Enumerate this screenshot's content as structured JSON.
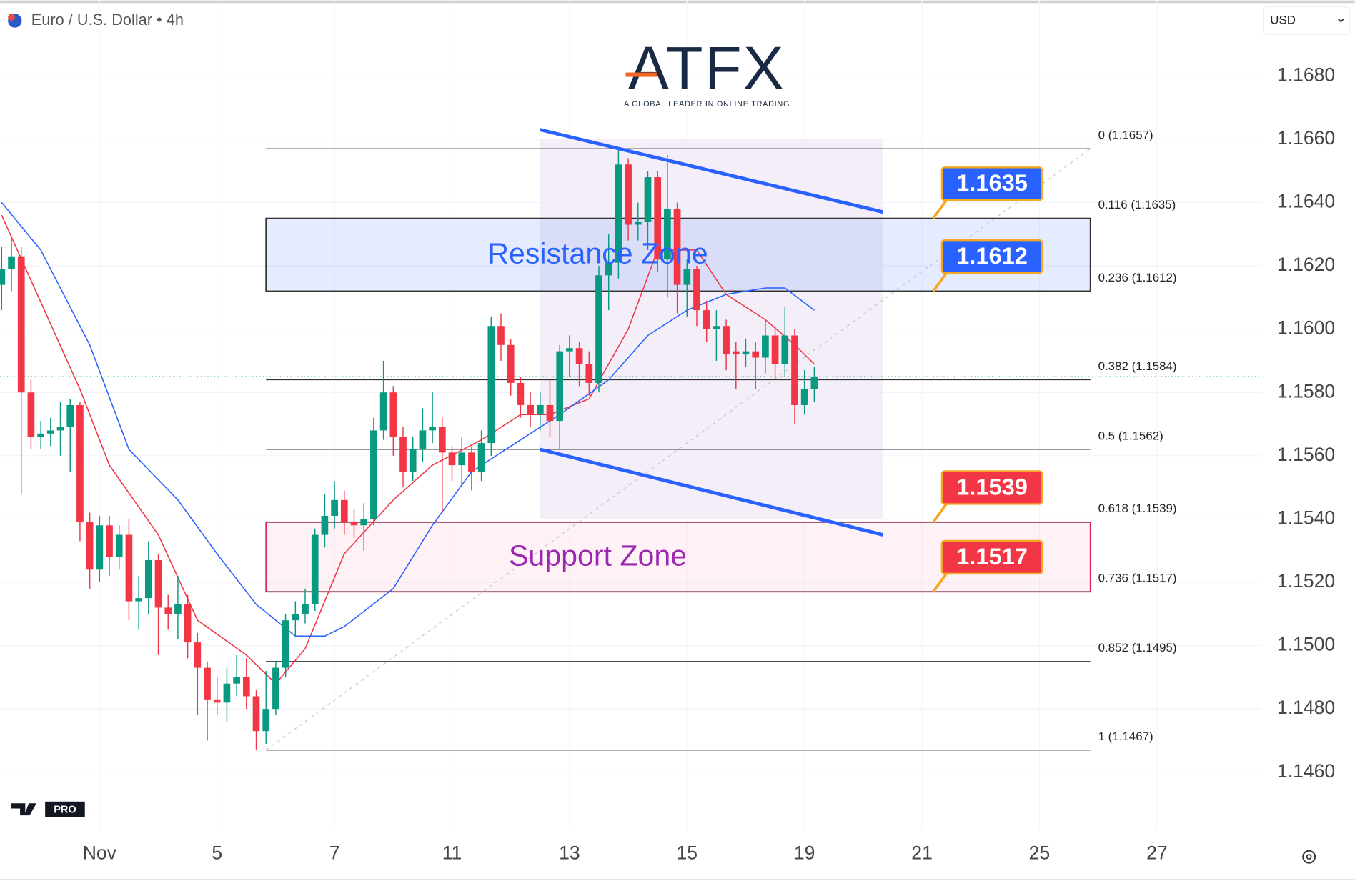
{
  "chart_data": {
    "type": "candlestick",
    "title": "Euro / U.S. Dollar • 4h",
    "currency": "USD",
    "logo": {
      "text": "ATFX",
      "tagline": "A GLOBAL LEADER IN ONLINE TRADING"
    },
    "badge": "PRO",
    "up_color": "#089981",
    "down_color": "#f23645",
    "open": [
      1.1614,
      1.1619,
      1.1623,
      1.158,
      1.1566,
      1.1567,
      1.1568,
      1.1569,
      1.1576,
      1.1539,
      1.1524,
      1.1538,
      1.1528,
      1.1535,
      1.1514,
      1.1515,
      1.1527,
      1.1512,
      1.151,
      1.1513,
      1.1501,
      1.1493,
      1.1483,
      1.1482,
      1.1488,
      1.149,
      1.1484,
      1.1473,
      1.148,
      1.1493,
      1.1508,
      1.151,
      1.1513,
      1.1535,
      1.1541,
      1.1546,
      1.1539,
      1.1538,
      1.154,
      1.1568,
      1.158,
      1.1566,
      1.1555,
      1.1562,
      1.1568,
      1.1569,
      1.1561,
      1.1557,
      1.1561,
      1.1555,
      1.1564,
      1.1601,
      1.1595,
      1.1583,
      1.1576,
      1.1573,
      1.1576,
      1.1571,
      1.1593,
      1.1594,
      1.1589,
      1.1583,
      1.1617,
      1.1621,
      1.1652,
      1.1633,
      1.1634,
      1.1648,
      1.1622,
      1.1638,
      1.1614,
      1.1619,
      1.1606,
      1.16,
      1.1601,
      1.1593,
      1.1592,
      1.1593,
      1.1591,
      1.1598,
      1.1589,
      1.1598,
      1.1576,
      1.1581
    ],
    "high": [
      1.1626,
      1.1629,
      1.1626,
      1.1584,
      1.1571,
      1.1572,
      1.1577,
      1.1578,
      1.1577,
      1.1542,
      1.1541,
      1.1541,
      1.1538,
      1.154,
      1.1522,
      1.1533,
      1.1529,
      1.1516,
      1.1522,
      1.1516,
      1.1504,
      1.1495,
      1.149,
      1.1493,
      1.1497,
      1.1496,
      1.1486,
      1.1492,
      1.1495,
      1.151,
      1.1514,
      1.1518,
      1.1537,
      1.1548,
      1.1552,
      1.1549,
      1.1543,
      1.1545,
      1.1572,
      1.159,
      1.1582,
      1.1569,
      1.1566,
      1.1575,
      1.158,
      1.1572,
      1.1563,
      1.1566,
      1.1563,
      1.1568,
      1.1604,
      1.1605,
      1.1597,
      1.1585,
      1.158,
      1.158,
      1.1584,
      1.1595,
      1.1598,
      1.1596,
      1.1593,
      1.162,
      1.163,
      1.1657,
      1.1654,
      1.164,
      1.165,
      1.165,
      1.1655,
      1.164,
      1.1622,
      1.162,
      1.1609,
      1.1606,
      1.1603,
      1.1596,
      1.1597,
      1.1596,
      1.1603,
      1.1601,
      1.1607,
      1.16,
      1.1587,
      1.1588
    ],
    "low": [
      1.1606,
      1.1612,
      1.1548,
      1.1562,
      1.1562,
      1.1563,
      1.156,
      1.1555,
      1.1533,
      1.1518,
      1.152,
      1.1522,
      1.1524,
      1.1508,
      1.1505,
      1.151,
      1.1497,
      1.1505,
      1.1502,
      1.1496,
      1.1478,
      1.147,
      1.1478,
      1.1476,
      1.1484,
      1.148,
      1.1467,
      1.1469,
      1.1478,
      1.149,
      1.1503,
      1.1507,
      1.1511,
      1.1531,
      1.1537,
      1.1535,
      1.1534,
      1.153,
      1.1538,
      1.1565,
      1.156,
      1.155,
      1.1552,
      1.1558,
      1.1564,
      1.1542,
      1.1552,
      1.155,
      1.1549,
      1.1552,
      1.156,
      1.159,
      1.1579,
      1.1572,
      1.1569,
      1.1568,
      1.1566,
      1.1562,
      1.1585,
      1.1582,
      1.1579,
      1.158,
      1.1606,
      1.1616,
      1.1628,
      1.1628,
      1.1625,
      1.1618,
      1.161,
      1.1605,
      1.1604,
      1.1601,
      1.1596,
      1.159,
      1.1587,
      1.1581,
      1.1588,
      1.1581,
      1.1586,
      1.1584,
      1.1585,
      1.157,
      1.1573,
      1.1577
    ],
    "close": [
      1.1619,
      1.1623,
      1.158,
      1.1566,
      1.1567,
      1.1568,
      1.1569,
      1.1576,
      1.1539,
      1.1524,
      1.1538,
      1.1528,
      1.1535,
      1.1514,
      1.1515,
      1.1527,
      1.1512,
      1.151,
      1.1513,
      1.1501,
      1.1493,
      1.1483,
      1.1482,
      1.1488,
      1.149,
      1.1484,
      1.1473,
      1.148,
      1.1493,
      1.1508,
      1.151,
      1.1513,
      1.1535,
      1.1541,
      1.1546,
      1.1539,
      1.1538,
      1.154,
      1.1568,
      1.158,
      1.1566,
      1.1555,
      1.1562,
      1.1568,
      1.1569,
      1.1561,
      1.1557,
      1.1561,
      1.1555,
      1.1564,
      1.1601,
      1.1595,
      1.1583,
      1.1576,
      1.1573,
      1.1576,
      1.1571,
      1.1593,
      1.1594,
      1.1589,
      1.1583,
      1.1617,
      1.1621,
      1.1652,
      1.1633,
      1.1634,
      1.1648,
      1.1622,
      1.1638,
      1.1614,
      1.1619,
      1.1606,
      1.16,
      1.1601,
      1.1592,
      1.1592,
      1.1593,
      1.1591,
      1.1598,
      1.1589,
      1.1598,
      1.1576,
      1.1581,
      1.1585
    ],
    "moving_averages": [
      {
        "color": "#f23645",
        "x": [
          0,
          8,
          11,
          16,
          20,
          25,
          28,
          31,
          35,
          40,
          44,
          49,
          53,
          56,
          60,
          64,
          67,
          71,
          74,
          78,
          81,
          83
        ],
        "values": [
          1.1636,
          1.1581,
          1.1557,
          1.1535,
          1.1508,
          1.1497,
          1.1488,
          1.1499,
          1.1529,
          1.1546,
          1.1557,
          1.1565,
          1.1573,
          1.1573,
          1.1578,
          1.16,
          1.1625,
          1.1625,
          1.1611,
          1.1603,
          1.1595,
          1.1589
        ]
      },
      {
        "color": "#2962ff",
        "x": [
          0,
          4,
          9,
          13,
          18,
          22,
          26,
          30,
          33,
          35,
          40,
          44,
          48,
          53,
          57,
          62,
          66,
          70,
          74,
          78,
          80,
          83
        ],
        "values": [
          1.164,
          1.1625,
          1.1595,
          1.1562,
          1.1546,
          1.1529,
          1.1513,
          1.1503,
          1.1503,
          1.1506,
          1.1518,
          1.1538,
          1.1555,
          1.1565,
          1.1573,
          1.1584,
          1.1598,
          1.1606,
          1.1611,
          1.1613,
          1.1613,
          1.1606
        ]
      }
    ],
    "xlim": [
      -0.15,
      128.68
    ],
    "xticks": [
      {
        "value": 10,
        "label": "Nov"
      },
      {
        "value": 22,
        "label": "5"
      },
      {
        "value": 34,
        "label": "7"
      },
      {
        "value": 46,
        "label": "11"
      },
      {
        "value": 58,
        "label": "13"
      },
      {
        "value": 70,
        "label": "15"
      },
      {
        "value": 82,
        "label": "19"
      },
      {
        "value": 94,
        "label": "21"
      },
      {
        "value": 106,
        "label": "25"
      },
      {
        "value": 118,
        "label": "27"
      }
    ],
    "ylim": [
      1.1442,
      1.1704
    ],
    "yticks": [
      {
        "value": 1.146,
        "label": "1.1460"
      },
      {
        "value": 1.148,
        "label": "1.1480"
      },
      {
        "value": 1.15,
        "label": "1.1500"
      },
      {
        "value": 1.152,
        "label": "1.1520"
      },
      {
        "value": 1.154,
        "label": "1.1540"
      },
      {
        "value": 1.156,
        "label": "1.1560"
      },
      {
        "value": 1.158,
        "label": "1.1580"
      },
      {
        "value": 1.16,
        "label": "1.1600"
      },
      {
        "value": 1.162,
        "label": "1.1620"
      },
      {
        "value": 1.164,
        "label": "1.1640"
      },
      {
        "value": 1.166,
        "label": "1.1660"
      },
      {
        "value": 1.168,
        "label": "1.1680"
      }
    ],
    "grid": true,
    "highlight": {
      "x": [
        55,
        90
      ],
      "values": [
        1.166,
        1.154
      ],
      "color": "#f3eef8"
    },
    "fib": {
      "x": [
        27,
        111.2
      ],
      "levels": [
        {
          "value": 1.1657,
          "label": "0 (1.1657)"
        },
        {
          "value": 1.1635,
          "label": "0.116 (1.1635)"
        },
        {
          "value": 1.1612,
          "label": "0.236 (1.1612)"
        },
        {
          "value": 1.1584,
          "label": "0.382 (1.1584)"
        },
        {
          "value": 1.1562,
          "label": "0.5 (1.1562)"
        },
        {
          "value": 1.1539,
          "label": "0.618 (1.1539)"
        },
        {
          "value": 1.1517,
          "label": "0.736 (1.1517)"
        },
        {
          "value": 1.1495,
          "label": "0.852 (1.1495)"
        },
        {
          "value": 1.1467,
          "label": "1 (1.1467)"
        }
      ]
    },
    "zones": [
      {
        "label": "Resistance Zone",
        "values": [
          1.1635,
          1.1612
        ],
        "fill": "rgba(41,98,255,0.12)",
        "stroke": "#333333",
        "color": "#2962ff"
      },
      {
        "label": "Support Zone",
        "values": [
          1.1539,
          1.1517
        ],
        "fill": "rgba(233,30,99,0.06)",
        "stroke": "#e0245e",
        "color": "#9c27b0"
      }
    ],
    "trendlines": [
      {
        "x": [
          55,
          90
        ],
        "values": [
          1.1663,
          1.1637
        ],
        "color": "#2962ff"
      },
      {
        "x": [
          55,
          90
        ],
        "values": [
          1.1562,
          1.1535
        ],
        "color": "#2962ff"
      }
    ],
    "price_tags": [
      {
        "value": 1.1635,
        "color": "#2962ff"
      },
      {
        "value": 1.1612,
        "color": "#2962ff"
      },
      {
        "value": 1.1539,
        "color": "#f23645"
      },
      {
        "value": 1.1517,
        "color": "#f23645"
      }
    ]
  }
}
